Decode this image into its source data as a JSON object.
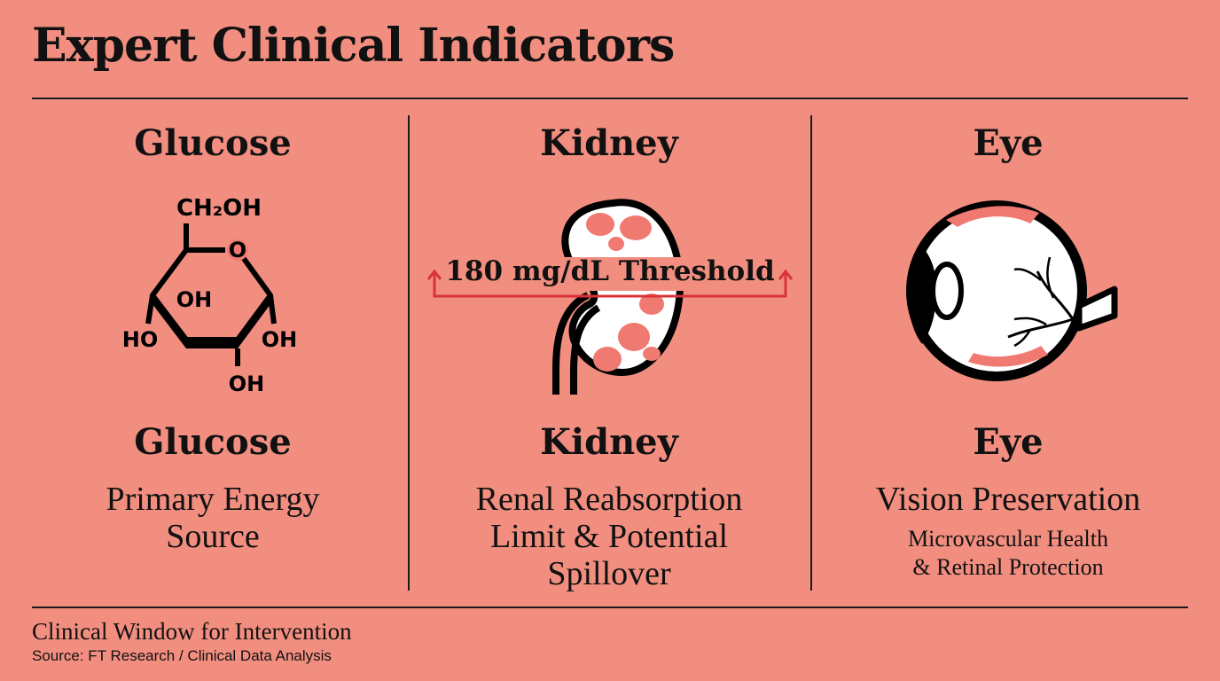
{
  "header": {
    "title": "Expert Clinical Indicators"
  },
  "columns": [
    {
      "heading": "Glucose",
      "icon": "glucose-molecule-icon",
      "molecule_labels": {
        "top": "CH₂OH",
        "ring_o": "O",
        "center": "OH",
        "left": "HO",
        "right": "OH",
        "bottom": "OH"
      },
      "name": "Glucose",
      "description": "Primary Energy Source",
      "description_lines": [
        "Primary Energy",
        "Source"
      ]
    },
    {
      "heading": "Kidney",
      "icon": "kidney-icon",
      "threshold_label": "180 mg/dL Threshold",
      "name": "Kidney",
      "description_lines": [
        "Renal Reabsorption",
        "Limit & Potential",
        "Spillover"
      ]
    },
    {
      "heading": "Eye",
      "icon": "eye-icon",
      "name": "Eye",
      "description": "Vision Preservation",
      "detail_lines": [
        "Microvascular Health",
        "& Retinal Protection"
      ]
    }
  ],
  "footer": {
    "caption": "Clinical Window for Intervention",
    "source": "Source: FT Research / Clinical Data Analysis"
  },
  "colors": {
    "background": "#f28e80",
    "accent": "#f07a72",
    "threshold": "#d8323a",
    "ink": "#111111"
  }
}
